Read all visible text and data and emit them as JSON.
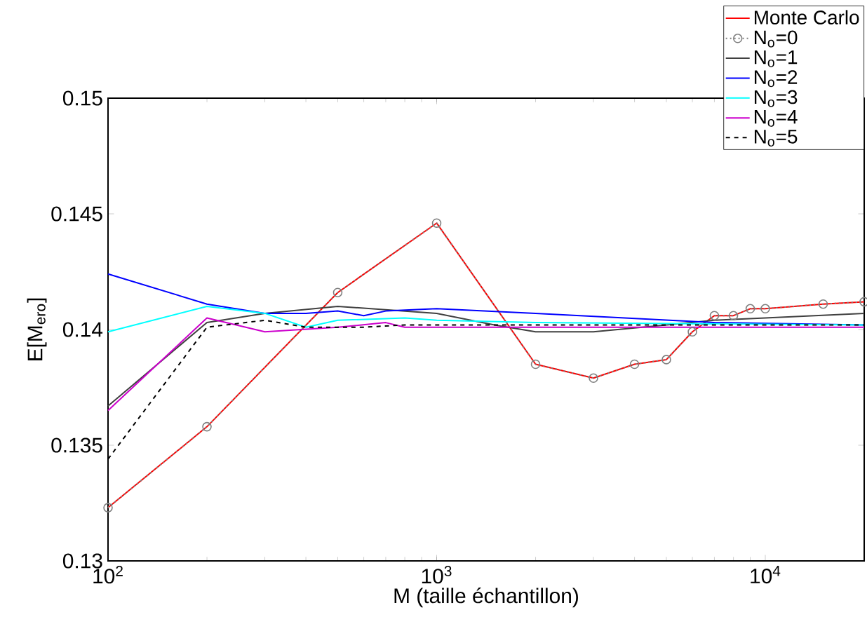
{
  "chart_data": {
    "type": "line",
    "xlabel": "M (taille échantillon)",
    "ylabel": "E[M$_{ero}$]",
    "log": "x",
    "xlim": [
      100,
      20000
    ],
    "ylim": [
      0.13,
      0.15
    ],
    "xticks": [
      {
        "value": 100,
        "label": "10$^{2}$"
      },
      {
        "value": 1000,
        "label": "10$^{3}$"
      },
      {
        "value": 10000,
        "label": "10$^{4}$"
      }
    ],
    "yticks": [
      0.13,
      0.135,
      0.14,
      0.145,
      0.15
    ],
    "grid": false,
    "legend": "top right",
    "series": [
      {
        "name": "Monte Carlo",
        "color": "#ff0000",
        "line_style": "solid",
        "x": [
          100,
          200,
          500,
          1000,
          2000,
          3000,
          4000,
          5000,
          6000,
          7000,
          8000,
          9000,
          10000,
          15000,
          20000
        ],
        "values": [
          0.1323,
          0.1358,
          0.1416,
          0.1446,
          0.1385,
          0.1379,
          0.1385,
          0.1387,
          0.1399,
          0.1406,
          0.1406,
          0.1409,
          0.1409,
          0.1411,
          0.1412
        ]
      },
      {
        "name": "N$_{o}$=0",
        "color": "#808080",
        "line_style": "dotted",
        "marker": "circle",
        "x": [
          100,
          200,
          500,
          1000,
          2000,
          3000,
          4000,
          5000,
          6000,
          7000,
          8000,
          9000,
          10000,
          15000,
          20000
        ],
        "values": [
          0.1323,
          0.1358,
          0.1416,
          0.1446,
          0.1385,
          0.1379,
          0.1385,
          0.1387,
          0.1399,
          0.1406,
          0.1406,
          0.1409,
          0.1409,
          0.1411,
          0.1412
        ]
      },
      {
        "name": "N$_{o}$=1",
        "color": "#404040",
        "line_style": "solid",
        "x": [
          100,
          200,
          300,
          500,
          1000,
          1500,
          2000,
          3000,
          5000,
          7000,
          10000,
          20000
        ],
        "values": [
          0.1367,
          0.1403,
          0.1407,
          0.141,
          0.1407,
          0.1402,
          0.1399,
          0.1399,
          0.1402,
          0.1404,
          0.1405,
          0.1407
        ]
      },
      {
        "name": "N$_{o}$=2",
        "color": "#0000ff",
        "line_style": "solid",
        "x": [
          100,
          200,
          300,
          400,
          500,
          600,
          700,
          1000,
          2000,
          7000,
          20000
        ],
        "values": [
          0.1424,
          0.1411,
          0.1407,
          0.1407,
          0.1408,
          0.1406,
          0.1408,
          0.1409,
          0.1407,
          0.1403,
          0.1402
        ]
      },
      {
        "name": "N$_{o}$=3",
        "color": "#00ffff",
        "line_style": "solid",
        "x": [
          100,
          200,
          300,
          400,
          500,
          800,
          1000,
          2000,
          20000
        ],
        "values": [
          0.1399,
          0.141,
          0.1407,
          0.1401,
          0.1404,
          0.1405,
          0.1404,
          0.1403,
          0.1402
        ]
      },
      {
        "name": "N$_{o}$=4",
        "color": "#cc00cc",
        "line_style": "solid",
        "x": [
          100,
          200,
          300,
          500,
          700,
          800,
          1000,
          20000
        ],
        "values": [
          0.1365,
          0.1405,
          0.1399,
          0.1401,
          0.1403,
          0.1401,
          0.1401,
          0.1401
        ]
      },
      {
        "name": "N$_{o}$=5",
        "color": "#000000",
        "line_style": "dashed",
        "x": [
          100,
          200,
          300,
          400,
          500,
          600,
          800,
          1000,
          20000
        ],
        "values": [
          0.1344,
          0.1401,
          0.1404,
          0.1401,
          0.1401,
          0.1401,
          0.1402,
          0.1402,
          0.1402
        ]
      }
    ]
  }
}
